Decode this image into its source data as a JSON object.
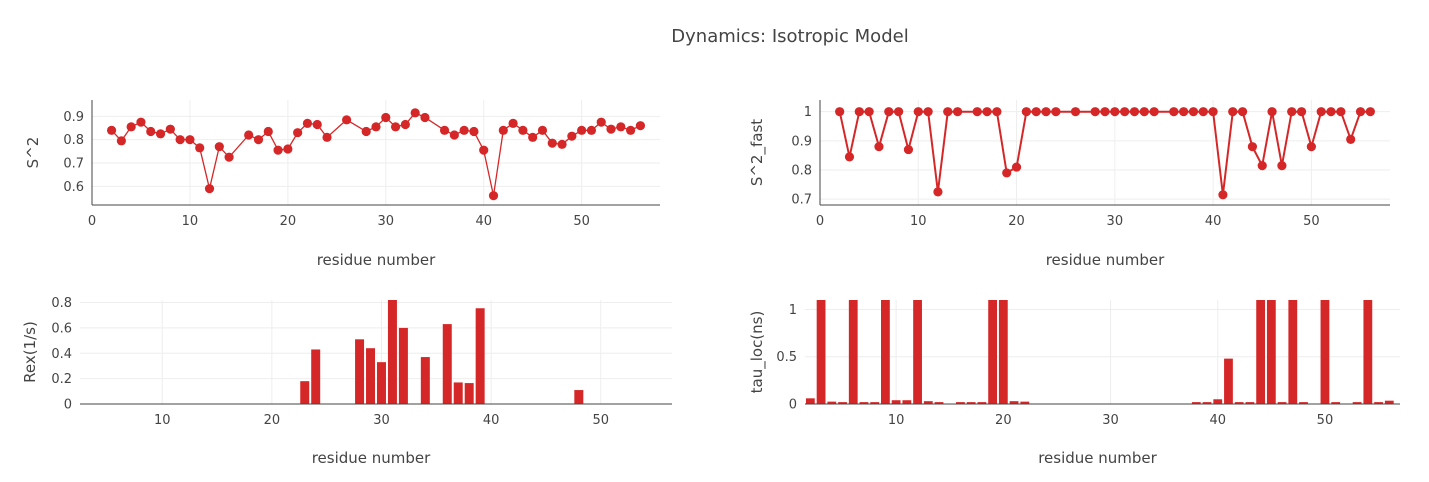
{
  "figure": {
    "title": "Dynamics: Isotropic Model",
    "trace_color": "#d62728"
  },
  "chart_data": [
    {
      "id": "s2",
      "type": "line",
      "xlabel": "residue number",
      "ylabel": "S^2",
      "xlim": [
        0,
        58
      ],
      "ylim": [
        0.52,
        0.97
      ],
      "x_ticks": [
        0,
        10,
        20,
        30,
        40,
        50
      ],
      "y_ticks": [
        0.6,
        0.7,
        0.8,
        0.9
      ],
      "y_tick_labels": [
        "0.6",
        "0.7",
        "0.8",
        "0.9"
      ],
      "grid": true,
      "points": [
        [
          2,
          0.84
        ],
        [
          3,
          0.795
        ],
        [
          4,
          0.855
        ],
        [
          5,
          0.875
        ],
        [
          6,
          0.835
        ],
        [
          7,
          0.825
        ],
        [
          8,
          0.845
        ],
        [
          9,
          0.8
        ],
        [
          10,
          0.8
        ],
        [
          11,
          0.765
        ],
        [
          12,
          0.59
        ],
        [
          13,
          0.77
        ],
        [
          14,
          0.725
        ],
        [
          16,
          0.82
        ],
        [
          17,
          0.8
        ],
        [
          18,
          0.835
        ],
        [
          19,
          0.755
        ],
        [
          20,
          0.76
        ],
        [
          21,
          0.83
        ],
        [
          22,
          0.87
        ],
        [
          23,
          0.865
        ],
        [
          24,
          0.81
        ],
        [
          26,
          0.885
        ],
        [
          28,
          0.835
        ],
        [
          29,
          0.855
        ],
        [
          30,
          0.895
        ],
        [
          31,
          0.855
        ],
        [
          32,
          0.865
        ],
        [
          33,
          0.915
        ],
        [
          34,
          0.895
        ],
        [
          36,
          0.84
        ],
        [
          37,
          0.82
        ],
        [
          38,
          0.84
        ],
        [
          39,
          0.835
        ],
        [
          40,
          0.755
        ],
        [
          41,
          0.56
        ],
        [
          42,
          0.84
        ],
        [
          43,
          0.87
        ],
        [
          44,
          0.84
        ],
        [
          45,
          0.81
        ],
        [
          46,
          0.84
        ],
        [
          47,
          0.785
        ],
        [
          48,
          0.78
        ],
        [
          49,
          0.815
        ],
        [
          50,
          0.84
        ],
        [
          51,
          0.84
        ],
        [
          52,
          0.875
        ],
        [
          53,
          0.845
        ],
        [
          54,
          0.855
        ],
        [
          55,
          0.84
        ],
        [
          56,
          0.86
        ]
      ]
    },
    {
      "id": "s2fast",
      "type": "line",
      "xlabel": "residue number",
      "ylabel": "S^2_fast",
      "xlim": [
        0,
        58
      ],
      "ylim": [
        0.68,
        1.04
      ],
      "x_ticks": [
        0,
        10,
        20,
        30,
        40,
        50
      ],
      "y_ticks": [
        0.7,
        0.8,
        0.9,
        1.0
      ],
      "y_tick_labels": [
        "0.7",
        "0.8",
        "0.9",
        "1"
      ],
      "grid": true,
      "points": [
        [
          2,
          1.0
        ],
        [
          3,
          0.845
        ],
        [
          4,
          1.0
        ],
        [
          5,
          1.0
        ],
        [
          6,
          0.88
        ],
        [
          7,
          1.0
        ],
        [
          8,
          1.0
        ],
        [
          9,
          0.87
        ],
        [
          10,
          1.0
        ],
        [
          11,
          1.0
        ],
        [
          12,
          0.725
        ],
        [
          13,
          1.0
        ],
        [
          14,
          1.0
        ],
        [
          16,
          1.0
        ],
        [
          17,
          1.0
        ],
        [
          18,
          1.0
        ],
        [
          19,
          0.79
        ],
        [
          20,
          0.81
        ],
        [
          21,
          1.0
        ],
        [
          22,
          1.0
        ],
        [
          23,
          1.0
        ],
        [
          24,
          1.0
        ],
        [
          26,
          1.0
        ],
        [
          28,
          1.0
        ],
        [
          29,
          1.0
        ],
        [
          30,
          1.0
        ],
        [
          31,
          1.0
        ],
        [
          32,
          1.0
        ],
        [
          33,
          1.0
        ],
        [
          34,
          1.0
        ],
        [
          36,
          1.0
        ],
        [
          37,
          1.0
        ],
        [
          38,
          1.0
        ],
        [
          39,
          1.0
        ],
        [
          40,
          1.0
        ],
        [
          41,
          0.715
        ],
        [
          42,
          1.0
        ],
        [
          43,
          1.0
        ],
        [
          44,
          0.88
        ],
        [
          45,
          0.815
        ],
        [
          46,
          1.0
        ],
        [
          47,
          0.815
        ],
        [
          48,
          1.0
        ],
        [
          49,
          1.0
        ],
        [
          50,
          0.88
        ],
        [
          51,
          1.0
        ],
        [
          52,
          1.0
        ],
        [
          53,
          1.0
        ],
        [
          54,
          0.905
        ],
        [
          55,
          1.0
        ],
        [
          56,
          1.0
        ]
      ]
    },
    {
      "id": "rex",
      "type": "bar",
      "xlabel": "residue number",
      "ylabel": "Rex(1/s)",
      "xlim": [
        2.5,
        56.5
      ],
      "ylim": [
        0,
        0.82
      ],
      "x_ticks": [
        10,
        20,
        30,
        40,
        50
      ],
      "y_ticks": [
        0,
        0.2,
        0.4,
        0.6,
        0.8
      ],
      "y_tick_labels": [
        "0",
        "0.2",
        "0.4",
        "0.6",
        "0.8"
      ],
      "grid": true,
      "bars": [
        [
          23,
          0.18
        ],
        [
          24,
          0.43
        ],
        [
          28,
          0.51
        ],
        [
          29,
          0.44
        ],
        [
          30,
          0.33
        ],
        [
          31,
          0.82
        ],
        [
          32,
          0.6
        ],
        [
          34,
          0.37
        ],
        [
          36,
          0.63
        ],
        [
          37,
          0.17
        ],
        [
          38,
          0.165
        ],
        [
          39,
          0.755
        ],
        [
          48,
          0.11
        ]
      ]
    },
    {
      "id": "tauloc",
      "type": "bar",
      "xlabel": "residue number",
      "ylabel": "tau_loc(ns)",
      "xlim": [
        1.5,
        57.0
      ],
      "ylim": [
        0,
        1.1
      ],
      "x_ticks": [
        10,
        20,
        30,
        40,
        50
      ],
      "y_ticks": [
        0,
        0.5,
        1.0
      ],
      "y_tick_labels": [
        "0",
        "0.5",
        "1"
      ],
      "grid": true,
      "bars": [
        [
          2,
          0.06
        ],
        [
          3,
          1.1
        ],
        [
          4,
          0.025
        ],
        [
          5,
          0.02
        ],
        [
          6,
          1.1
        ],
        [
          7,
          0.02
        ],
        [
          8,
          0.02
        ],
        [
          9,
          1.1
        ],
        [
          10,
          0.04
        ],
        [
          11,
          0.04
        ],
        [
          12,
          1.1
        ],
        [
          13,
          0.03
        ],
        [
          14,
          0.02
        ],
        [
          16,
          0.02
        ],
        [
          17,
          0.02
        ],
        [
          18,
          0.02
        ],
        [
          19,
          1.1
        ],
        [
          20,
          1.1
        ],
        [
          21,
          0.03
        ],
        [
          22,
          0.025
        ],
        [
          23,
          0.005
        ],
        [
          24,
          0.005
        ],
        [
          26,
          0.005
        ],
        [
          28,
          0.005
        ],
        [
          29,
          0.005
        ],
        [
          30,
          0.005
        ],
        [
          31,
          0.005
        ],
        [
          32,
          0.005
        ],
        [
          33,
          0.005
        ],
        [
          34,
          0.005
        ],
        [
          36,
          0.005
        ],
        [
          37,
          0.005
        ],
        [
          38,
          0.02
        ],
        [
          39,
          0.02
        ],
        [
          40,
          0.05
        ],
        [
          41,
          0.48
        ],
        [
          42,
          0.02
        ],
        [
          43,
          0.02
        ],
        [
          44,
          1.1
        ],
        [
          45,
          1.1
        ],
        [
          46,
          0.02
        ],
        [
          47,
          1.1
        ],
        [
          48,
          0.02
        ],
        [
          49,
          0.005
        ],
        [
          50,
          1.1
        ],
        [
          51,
          0.02
        ],
        [
          52,
          0.005
        ],
        [
          53,
          0.02
        ],
        [
          54,
          1.1
        ],
        [
          55,
          0.02
        ],
        [
          56,
          0.035
        ]
      ]
    }
  ]
}
